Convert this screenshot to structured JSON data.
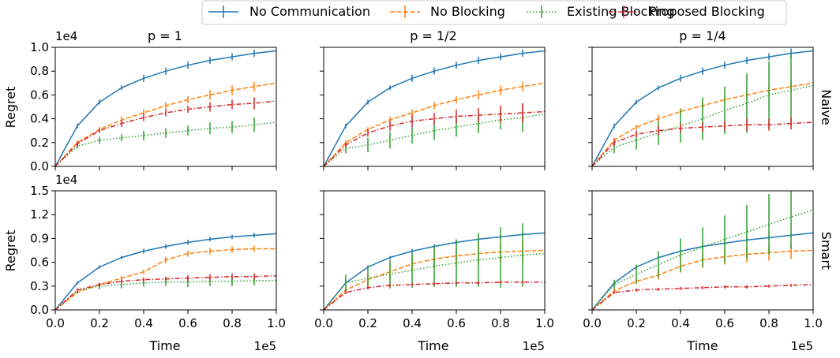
{
  "legend": {
    "placement": "top-center",
    "entries": [
      {
        "name": "No Communication",
        "color": "#1f77b4",
        "style": "solid"
      },
      {
        "name": "No Blocking",
        "color": "#ff7f0e",
        "style": "dashed"
      },
      {
        "name": "Existing Blocking",
        "color": "#2ca02c",
        "style": "dotted"
      },
      {
        "name": "Proposed Blocking",
        "color": "#d62728",
        "style": "dashdot"
      }
    ]
  },
  "row_labels": [
    "Naive",
    "Smart"
  ],
  "col_titles": [
    "p = 1",
    "p = 1/2",
    "p = 1/4"
  ],
  "ylabel": "Regret",
  "xlabel": "Time",
  "x_offset_text": "1e5",
  "y_offset_text": "1e4",
  "chart_data": [
    {
      "type": "line",
      "row": "Naive",
      "col": "p = 1",
      "x": [
        0,
        0.1,
        0.2,
        0.3,
        0.4,
        0.5,
        0.6,
        0.7,
        0.8,
        0.9,
        1.0
      ],
      "xlim": [
        0,
        1
      ],
      "ylim": [
        0,
        1.0
      ],
      "xticks": [
        "0.0",
        "0.2",
        "0.4",
        "0.6",
        "0.8",
        "1.0"
      ],
      "yticks": [
        "0.0",
        "0.2",
        "0.4",
        "0.6",
        "0.8",
        "1.0"
      ],
      "series": [
        {
          "name": "No Communication",
          "values": [
            0,
            0.34,
            0.54,
            0.66,
            0.74,
            0.8,
            0.85,
            0.89,
            0.92,
            0.95,
            0.97
          ],
          "err": [
            0,
            0.02,
            0.02,
            0.02,
            0.03,
            0.03,
            0.03,
            0.03,
            0.03,
            0.03,
            0
          ]
        },
        {
          "name": "No Blocking",
          "values": [
            0,
            0.2,
            0.31,
            0.39,
            0.45,
            0.51,
            0.56,
            0.6,
            0.64,
            0.67,
            0.7
          ],
          "err": [
            0,
            0.02,
            0.02,
            0.03,
            0.03,
            0.03,
            0.03,
            0.04,
            0.04,
            0.04,
            0
          ]
        },
        {
          "name": "Existing Blocking",
          "values": [
            0,
            0.17,
            0.22,
            0.24,
            0.26,
            0.28,
            0.3,
            0.32,
            0.33,
            0.35,
            0.37
          ],
          "err": [
            0,
            0.02,
            0.03,
            0.03,
            0.04,
            0.04,
            0.04,
            0.05,
            0.05,
            0.06,
            0
          ]
        },
        {
          "name": "Proposed Blocking",
          "values": [
            0,
            0.19,
            0.3,
            0.36,
            0.41,
            0.45,
            0.48,
            0.5,
            0.52,
            0.53,
            0.55
          ],
          "err": [
            0,
            0.02,
            0.02,
            0.03,
            0.03,
            0.03,
            0.03,
            0.04,
            0.04,
            0.05,
            0
          ]
        }
      ]
    },
    {
      "type": "line",
      "row": "Naive",
      "col": "p = 1/2",
      "x": [
        0,
        0.1,
        0.2,
        0.3,
        0.4,
        0.5,
        0.6,
        0.7,
        0.8,
        0.9,
        1.0
      ],
      "xlim": [
        0,
        1
      ],
      "ylim": [
        0,
        1.0
      ],
      "xticks": [
        "0.0",
        "0.2",
        "0.4",
        "0.6",
        "0.8",
        "1.0"
      ],
      "yticks": [],
      "series": [
        {
          "name": "No Communication",
          "values": [
            0,
            0.34,
            0.54,
            0.66,
            0.74,
            0.8,
            0.85,
            0.89,
            0.92,
            0.95,
            0.97
          ],
          "err": [
            0,
            0.02,
            0.02,
            0.02,
            0.03,
            0.03,
            0.03,
            0.03,
            0.03,
            0.03,
            0
          ]
        },
        {
          "name": "No Blocking",
          "values": [
            0,
            0.2,
            0.31,
            0.39,
            0.45,
            0.51,
            0.56,
            0.6,
            0.64,
            0.67,
            0.7
          ],
          "err": [
            0,
            0.02,
            0.02,
            0.03,
            0.03,
            0.03,
            0.03,
            0.04,
            0.04,
            0.04,
            0
          ]
        },
        {
          "name": "Existing Blocking",
          "values": [
            0,
            0.15,
            0.18,
            0.22,
            0.26,
            0.3,
            0.33,
            0.36,
            0.39,
            0.41,
            0.44
          ],
          "err": [
            0,
            0.04,
            0.06,
            0.07,
            0.07,
            0.08,
            0.08,
            0.08,
            0.08,
            0.12,
            0
          ]
        },
        {
          "name": "Proposed Blocking",
          "values": [
            0,
            0.18,
            0.28,
            0.34,
            0.38,
            0.4,
            0.42,
            0.43,
            0.44,
            0.45,
            0.46
          ],
          "err": [
            0,
            0.02,
            0.03,
            0.04,
            0.05,
            0.05,
            0.06,
            0.06,
            0.07,
            0.08,
            0
          ]
        }
      ]
    },
    {
      "type": "line",
      "row": "Naive",
      "col": "p = 1/4",
      "x": [
        0,
        0.1,
        0.2,
        0.3,
        0.4,
        0.5,
        0.6,
        0.7,
        0.8,
        0.9,
        1.0
      ],
      "xlim": [
        0,
        1
      ],
      "ylim": [
        0,
        1.0
      ],
      "xticks": [
        "0.0",
        "0.2",
        "0.4",
        "0.6",
        "0.8",
        "1.0"
      ],
      "yticks": [],
      "series": [
        {
          "name": "No Communication",
          "values": [
            0,
            0.34,
            0.54,
            0.66,
            0.74,
            0.8,
            0.85,
            0.89,
            0.92,
            0.95,
            0.97
          ],
          "err": [
            0,
            0.02,
            0.02,
            0.02,
            0.03,
            0.03,
            0.03,
            0.03,
            0.03,
            0.04,
            0
          ]
        },
        {
          "name": "No Blocking",
          "values": [
            0,
            0.22,
            0.33,
            0.4,
            0.46,
            0.51,
            0.56,
            0.6,
            0.64,
            0.67,
            0.7
          ],
          "err": [
            0,
            0.02,
            0.02,
            0.03,
            0.03,
            0.03,
            0.04,
            0.04,
            0.04,
            0.05,
            0
          ]
        },
        {
          "name": "Existing Blocking",
          "values": [
            0,
            0.16,
            0.22,
            0.28,
            0.34,
            0.4,
            0.47,
            0.53,
            0.6,
            0.64,
            0.68
          ],
          "err": [
            0,
            0.05,
            0.08,
            0.1,
            0.14,
            0.18,
            0.2,
            0.25,
            0.28,
            0.3,
            0
          ]
        },
        {
          "name": "Proposed Blocking",
          "values": [
            0,
            0.2,
            0.27,
            0.3,
            0.32,
            0.33,
            0.34,
            0.35,
            0.35,
            0.36,
            0.37
          ],
          "err": [
            0,
            0.03,
            0.03,
            0.04,
            0.04,
            0.04,
            0.04,
            0.05,
            0.05,
            0.05,
            0
          ]
        }
      ]
    },
    {
      "type": "line",
      "row": "Smart",
      "col": "p = 1",
      "x": [
        0,
        0.1,
        0.2,
        0.3,
        0.4,
        0.5,
        0.6,
        0.7,
        0.8,
        0.9,
        1.0
      ],
      "xlim": [
        0,
        1
      ],
      "ylim": [
        0,
        1.5
      ],
      "xticks": [
        "0.0",
        "0.2",
        "0.4",
        "0.6",
        "0.8",
        "1.0"
      ],
      "yticks": [
        "0.0",
        "0.3",
        "0.6",
        "0.9",
        "1.2",
        "1.5"
      ],
      "series": [
        {
          "name": "No Communication",
          "values": [
            0,
            0.34,
            0.54,
            0.66,
            0.74,
            0.8,
            0.85,
            0.89,
            0.92,
            0.94,
            0.96
          ],
          "err": [
            0,
            0.02,
            0.02,
            0.02,
            0.03,
            0.03,
            0.03,
            0.03,
            0.03,
            0.03,
            0
          ]
        },
        {
          "name": "No Blocking",
          "values": [
            0,
            0.22,
            0.32,
            0.4,
            0.48,
            0.63,
            0.71,
            0.74,
            0.76,
            0.77,
            0.77
          ],
          "err": [
            0,
            0.02,
            0.02,
            0.03,
            0.03,
            0.04,
            0.04,
            0.04,
            0.04,
            0.04,
            0
          ]
        },
        {
          "name": "Existing Blocking",
          "values": [
            0,
            0.24,
            0.3,
            0.32,
            0.34,
            0.35,
            0.35,
            0.36,
            0.36,
            0.37,
            0.37
          ],
          "err": [
            0,
            0.03,
            0.04,
            0.05,
            0.05,
            0.05,
            0.06,
            0.06,
            0.06,
            0.06,
            0
          ]
        },
        {
          "name": "Proposed Blocking",
          "values": [
            0,
            0.25,
            0.32,
            0.36,
            0.38,
            0.39,
            0.4,
            0.41,
            0.42,
            0.42,
            0.43
          ],
          "err": [
            0,
            0.02,
            0.02,
            0.03,
            0.03,
            0.03,
            0.04,
            0.04,
            0.04,
            0.04,
            0
          ]
        }
      ]
    },
    {
      "type": "line",
      "row": "Smart",
      "col": "p = 1/2",
      "x": [
        0,
        0.1,
        0.2,
        0.3,
        0.4,
        0.5,
        0.6,
        0.7,
        0.8,
        0.9,
        1.0
      ],
      "xlim": [
        0,
        1
      ],
      "ylim": [
        0,
        1.5
      ],
      "xticks": [
        "0.0",
        "0.2",
        "0.4",
        "0.6",
        "0.8",
        "1.0"
      ],
      "yticks": [],
      "series": [
        {
          "name": "No Communication",
          "values": [
            0,
            0.34,
            0.54,
            0.66,
            0.74,
            0.8,
            0.85,
            0.89,
            0.92,
            0.95,
            0.97
          ],
          "err": [
            0,
            0.02,
            0.02,
            0.02,
            0.03,
            0.03,
            0.03,
            0.03,
            0.03,
            0.03,
            0
          ]
        },
        {
          "name": "No Blocking",
          "values": [
            0,
            0.25,
            0.38,
            0.48,
            0.58,
            0.64,
            0.68,
            0.71,
            0.73,
            0.74,
            0.75
          ],
          "err": [
            0,
            0.05,
            0.07,
            0.1,
            0.12,
            0.12,
            0.12,
            0.12,
            0.12,
            0.12,
            0
          ]
        },
        {
          "name": "Existing Blocking",
          "values": [
            0,
            0.34,
            0.4,
            0.45,
            0.5,
            0.55,
            0.59,
            0.63,
            0.66,
            0.69,
            0.71
          ],
          "err": [
            0,
            0.1,
            0.14,
            0.18,
            0.22,
            0.26,
            0.3,
            0.34,
            0.38,
            0.4,
            0
          ]
        },
        {
          "name": "Proposed Blocking",
          "values": [
            0,
            0.22,
            0.28,
            0.31,
            0.32,
            0.33,
            0.34,
            0.34,
            0.35,
            0.35,
            0.35
          ],
          "err": [
            0,
            0.02,
            0.02,
            0.02,
            0.02,
            0.02,
            0.02,
            0.02,
            0.02,
            0.02,
            0
          ]
        }
      ]
    },
    {
      "type": "line",
      "row": "Smart",
      "col": "p = 1/4",
      "x": [
        0,
        0.1,
        0.2,
        0.3,
        0.4,
        0.5,
        0.6,
        0.7,
        0.8,
        0.9,
        1.0
      ],
      "xlim": [
        0,
        1
      ],
      "ylim": [
        0,
        1.5
      ],
      "xticks": [
        "0.0",
        "0.2",
        "0.4",
        "0.6",
        "0.8",
        "1.0"
      ],
      "yticks": [],
      "series": [
        {
          "name": "No Communication",
          "values": [
            0,
            0.34,
            0.54,
            0.66,
            0.74,
            0.8,
            0.84,
            0.88,
            0.91,
            0.94,
            0.97
          ],
          "err": [
            0,
            0.02,
            0.02,
            0.02,
            0.03,
            0.03,
            0.03,
            0.03,
            0.03,
            0.03,
            0
          ]
        },
        {
          "name": "No Blocking",
          "values": [
            0,
            0.24,
            0.36,
            0.44,
            0.55,
            0.63,
            0.67,
            0.7,
            0.72,
            0.74,
            0.75
          ],
          "err": [
            0,
            0.03,
            0.04,
            0.06,
            0.08,
            0.1,
            0.1,
            0.1,
            0.1,
            0.1,
            0
          ]
        },
        {
          "name": "Existing Blocking",
          "values": [
            0,
            0.32,
            0.45,
            0.57,
            0.69,
            0.79,
            0.89,
            0.98,
            1.08,
            1.17,
            1.26
          ],
          "err": [
            0,
            0.06,
            0.12,
            0.17,
            0.21,
            0.25,
            0.3,
            0.34,
            0.38,
            0.4,
            0
          ]
        },
        {
          "name": "Proposed Blocking",
          "values": [
            0,
            0.22,
            0.25,
            0.26,
            0.27,
            0.28,
            0.29,
            0.29,
            0.3,
            0.31,
            0.32
          ],
          "err": [
            0,
            0.02,
            0.02,
            0.02,
            0.02,
            0.02,
            0.02,
            0.02,
            0.02,
            0.02,
            0
          ]
        }
      ]
    }
  ]
}
